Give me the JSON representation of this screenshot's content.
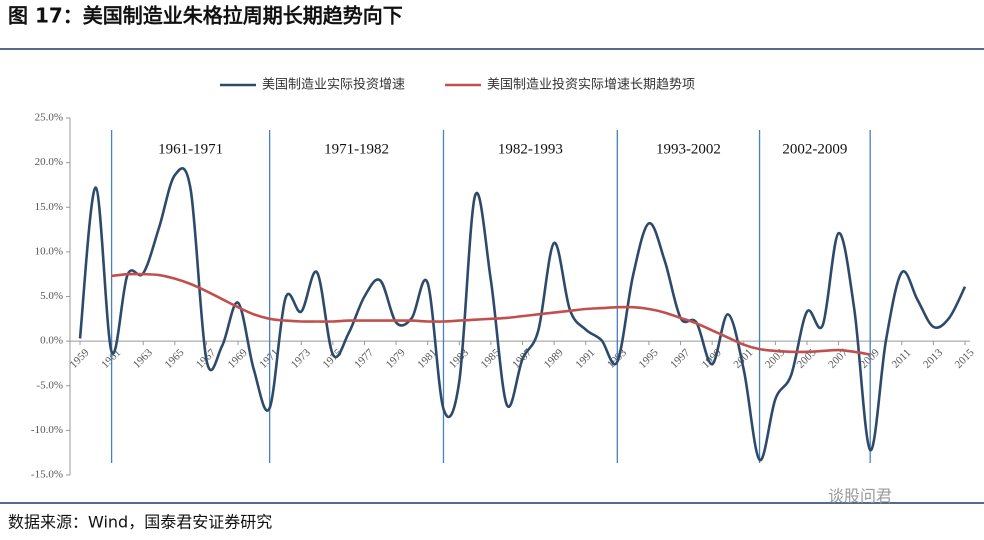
{
  "header": {
    "title": "图 17：美国制造业朱格拉周期长期趋势向下"
  },
  "footer": {
    "source": "数据来源：Wind，国泰君安证券研究",
    "watermark": "谈股问君"
  },
  "chart_data": {
    "type": "line",
    "x": [
      1959,
      1960,
      1961,
      1962,
      1963,
      1964,
      1965,
      1966,
      1967,
      1968,
      1969,
      1970,
      1971,
      1972,
      1973,
      1974,
      1975,
      1976,
      1977,
      1978,
      1979,
      1980,
      1981,
      1982,
      1983,
      1984,
      1985,
      1986,
      1987,
      1988,
      1989,
      1990,
      1991,
      1992,
      1993,
      1994,
      1995,
      1996,
      1997,
      1998,
      1999,
      2000,
      2001,
      2002,
      2003,
      2004,
      2005,
      2006,
      2007,
      2008,
      2009,
      2010,
      2011,
      2012,
      2013,
      2014,
      2015
    ],
    "series": [
      {
        "name": "美国制造业实际投资增速",
        "color": "#2e4a6b",
        "values": [
          0.3,
          17.2,
          -1.2,
          7.4,
          7.6,
          12.7,
          18.6,
          17.0,
          -2.1,
          -0.5,
          4.3,
          -3.2,
          -7.5,
          4.8,
          3.3,
          7.7,
          -1.5,
          0.9,
          5.0,
          6.8,
          2.1,
          2.6,
          6.5,
          -7.6,
          -4.5,
          16.3,
          6.8,
          -7.1,
          -2.0,
          1.2,
          11.0,
          3.5,
          1.3,
          0.1,
          -2.3,
          7.4,
          13.2,
          9.0,
          2.6,
          2.1,
          -2.6,
          3.0,
          -3.2,
          -13.3,
          -6.5,
          -3.8,
          3.3,
          1.8,
          12.1,
          3.5,
          -12.2,
          0.1,
          7.7,
          4.6,
          1.6,
          2.6,
          6.1
        ]
      },
      {
        "name": "美国制造业投资实际增速长期趋势项",
        "color": "#c0504d",
        "values": [
          null,
          null,
          7.3,
          7.5,
          7.5,
          7.4,
          7.0,
          6.4,
          5.6,
          4.7,
          3.8,
          3.0,
          2.5,
          2.3,
          2.2,
          2.2,
          2.2,
          2.3,
          2.3,
          2.3,
          2.3,
          2.3,
          2.2,
          2.2,
          2.3,
          2.4,
          2.5,
          2.6,
          2.8,
          3.0,
          3.2,
          3.4,
          3.6,
          3.7,
          3.8,
          3.8,
          3.6,
          3.2,
          2.6,
          2.0,
          1.2,
          0.4,
          -0.4,
          -0.9,
          -1.1,
          -1.2,
          -1.2,
          -1.1,
          -1.0,
          -1.2,
          -1.5,
          null,
          null,
          null,
          null,
          null,
          null
        ]
      }
    ],
    "xlim": [
      1959,
      2015
    ],
    "xticks": [
      1959,
      1961,
      1963,
      1965,
      1967,
      1969,
      1971,
      1973,
      1975,
      1977,
      1979,
      1981,
      1983,
      1985,
      1987,
      1989,
      1991,
      1993,
      1995,
      1997,
      1999,
      2001,
      2003,
      2005,
      2007,
      2009,
      2011,
      2013,
      2015
    ],
    "ylim": [
      -15,
      25
    ],
    "yticks": [
      {
        "value": -15,
        "label": "-15.0%"
      },
      {
        "value": -10,
        "label": "-10.0%"
      },
      {
        "value": -5,
        "label": "-5.0%"
      },
      {
        "value": 0,
        "label": "0.0%"
      },
      {
        "value": 5,
        "label": "5.0%"
      },
      {
        "value": 10,
        "label": "10.0%"
      },
      {
        "value": 15,
        "label": "15.0%"
      },
      {
        "value": 20,
        "label": "20.0%"
      },
      {
        "value": 25,
        "label": "25.0%"
      }
    ],
    "periods": [
      {
        "label": "1961-1971",
        "start": 1961,
        "end": 1971
      },
      {
        "label": "1971-1982",
        "start": 1971,
        "end": 1982
      },
      {
        "label": "1982-1993",
        "start": 1982,
        "end": 1993
      },
      {
        "label": "1993-2002",
        "start": 1993,
        "end": 2002
      },
      {
        "label": "2002-2009",
        "start": 2002,
        "end": 2009
      }
    ],
    "period_line_color": "#4a7fc1",
    "legend": "top"
  }
}
